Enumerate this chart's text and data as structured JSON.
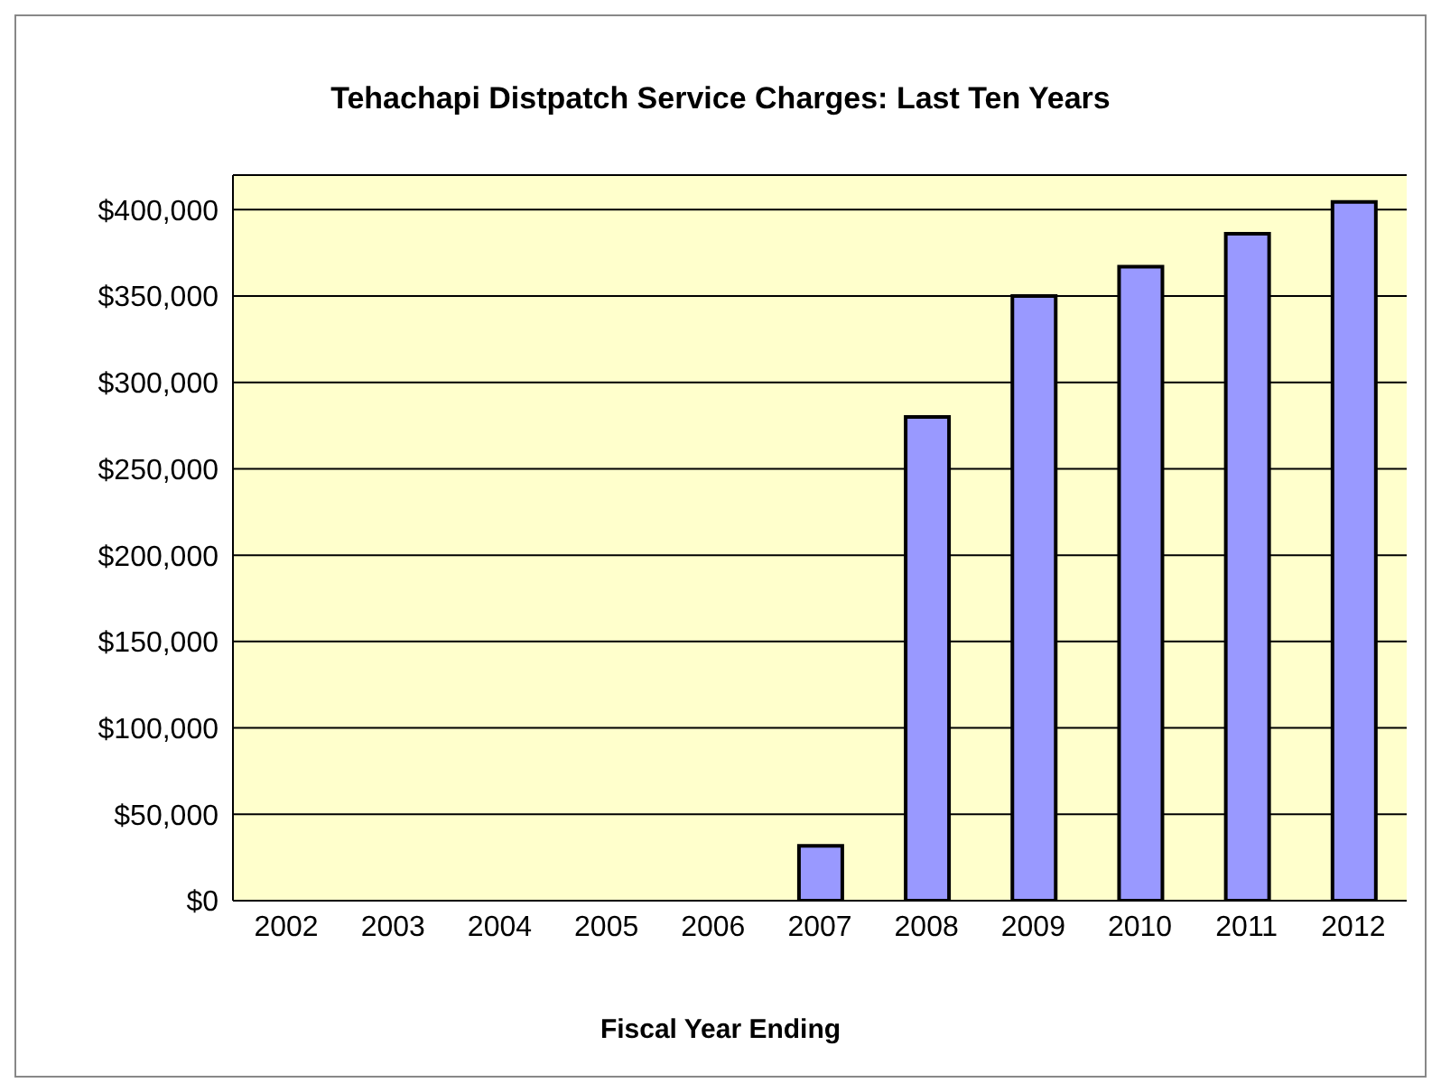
{
  "chart_data": {
    "type": "bar",
    "title": "Tehachapi Distpatch Service Charges: Last Ten Years",
    "xlabel": "Fiscal Year Ending",
    "categories": [
      "2002",
      "2003",
      "2004",
      "2005",
      "2006",
      "2007",
      "2008",
      "2009",
      "2010",
      "2011",
      "2012"
    ],
    "values": [
      0,
      0,
      0,
      0,
      0,
      31700,
      280000,
      350000,
      367000,
      386000,
      404500
    ],
    "color": "#9999ff",
    "ylim": [
      0,
      420000
    ],
    "yticks": [
      {
        "value": 0,
        "label": "$0"
      },
      {
        "value": 50000,
        "label": "$50,000"
      },
      {
        "value": 100000,
        "label": "$100,000"
      },
      {
        "value": 150000,
        "label": "$150,000"
      },
      {
        "value": 200000,
        "label": "$200,000"
      },
      {
        "value": 250000,
        "label": "$250,000"
      },
      {
        "value": 300000,
        "label": "$300,000"
      },
      {
        "value": 350000,
        "label": "$350,000"
      },
      {
        "value": 400000,
        "label": "$400,000"
      }
    ],
    "grid": "y",
    "legend": false
  }
}
